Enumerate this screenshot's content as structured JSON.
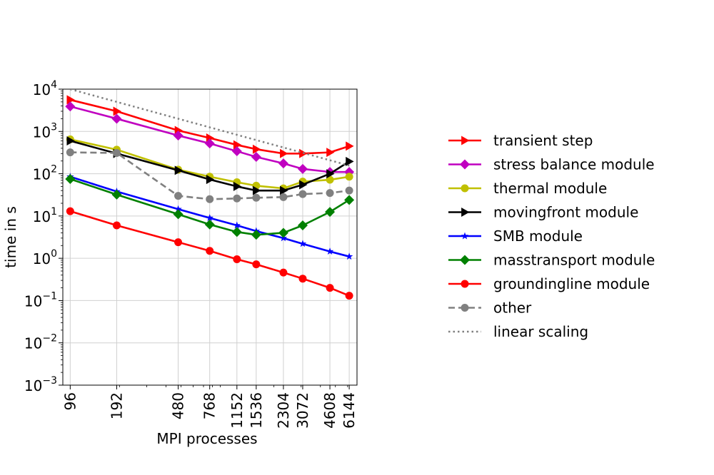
{
  "chart_data": {
    "type": "line",
    "xlabel": "MPI processes",
    "ylabel": "time in s",
    "x_scale": "log",
    "y_scale": "log",
    "grid": true,
    "legend_placement": "outside-right",
    "x": [
      96,
      192,
      480,
      768,
      1152,
      1536,
      2304,
      3072,
      4608,
      6144
    ],
    "x_tick_labels": [
      "96",
      "192",
      "480",
      "768",
      "1152",
      "1536",
      "2304",
      "3072",
      "4608",
      "6144"
    ],
    "ylim": [
      0.001,
      10000
    ],
    "y_ticks": [
      {
        "value": 0.001,
        "base": "10",
        "exp": "−3"
      },
      {
        "value": 0.01,
        "base": "10",
        "exp": "−2"
      },
      {
        "value": 0.1,
        "base": "10",
        "exp": "−1"
      },
      {
        "value": 1,
        "base": "10",
        "exp": "0"
      },
      {
        "value": 10,
        "base": "10",
        "exp": "1"
      },
      {
        "value": 100,
        "base": "10",
        "exp": "2"
      },
      {
        "value": 1000,
        "base": "10",
        "exp": "3"
      },
      {
        "value": 10000,
        "base": "10",
        "exp": "4"
      }
    ],
    "series": [
      {
        "name": "transient step",
        "color": "#ff0000",
        "marker": "triangle-right",
        "dash": "solid",
        "values": [
          5600,
          3000,
          1050,
          700,
          480,
          380,
          300,
          300,
          320,
          450
        ]
      },
      {
        "name": "stress balance module",
        "color": "#c000c0",
        "marker": "diamond",
        "dash": "solid",
        "values": [
          3900,
          2000,
          800,
          520,
          340,
          250,
          175,
          130,
          110,
          110
        ]
      },
      {
        "name": "thermal module",
        "color": "#c0c000",
        "marker": "circle",
        "dash": "solid",
        "values": [
          650,
          370,
          125,
          85,
          63,
          52,
          45,
          65,
          72,
          85
        ]
      },
      {
        "name": "movingfront module",
        "color": "#000000",
        "marker": "triangle-right",
        "dash": "solid",
        "values": [
          600,
          300,
          120,
          73,
          50,
          40,
          40,
          55,
          100,
          195
        ]
      },
      {
        "name": "SMB module",
        "color": "#0000ff",
        "marker": "star",
        "dash": "solid",
        "values": [
          85,
          38,
          14.5,
          9,
          6,
          4.4,
          3,
          2.2,
          1.45,
          1.1
        ]
      },
      {
        "name": "masstransport module",
        "color": "#008000",
        "marker": "diamond",
        "dash": "solid",
        "values": [
          75,
          32,
          11,
          6.3,
          4.2,
          3.6,
          4.0,
          6.0,
          12.5,
          24
        ]
      },
      {
        "name": "groundingline module",
        "color": "#ff0000",
        "marker": "circle",
        "dash": "solid",
        "values": [
          13,
          6,
          2.4,
          1.5,
          0.95,
          0.72,
          0.46,
          0.33,
          0.2,
          0.13
        ]
      },
      {
        "name": "other",
        "color": "#808080",
        "marker": "circle",
        "dash": "dashed",
        "values": [
          320,
          310,
          30,
          25,
          26,
          27,
          28,
          33,
          35,
          40
        ]
      },
      {
        "name": "linear scaling",
        "color": "#808080",
        "marker": "none",
        "dash": "dotted",
        "values": [
          10000,
          5000,
          2000,
          1250,
          833,
          625,
          417,
          313,
          208,
          156
        ]
      }
    ]
  }
}
